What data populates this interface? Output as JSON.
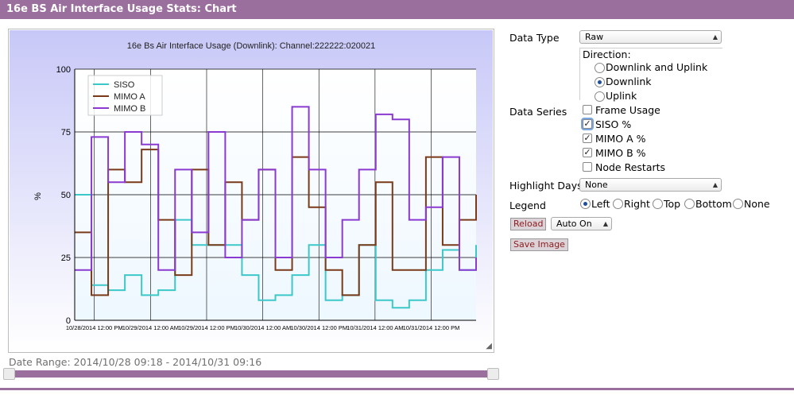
{
  "window": {
    "title": "16e BS Air Interface Usage Stats: Chart"
  },
  "colors": {
    "siso": "#3cc8c8",
    "mimo_a": "#7a3a1a",
    "mimo_b": "#8a3ad0",
    "accent": "#9a6f9e"
  },
  "chart_data": {
    "type": "line",
    "title": "16e Bs Air Interface Usage (Downlink): Channel:222222:020021",
    "ylabel": "%",
    "xlabel": "",
    "ylim": [
      0,
      100
    ],
    "yticks": [
      "0",
      "25",
      "50",
      "75",
      "100"
    ],
    "xticks": [
      "10/28/2014 12:00 PM",
      "10/29/2014 12:00 AM",
      "10/29/2014 12:00 PM",
      "10/30/2014 12:00 AM",
      "10/30/2014 12:00 PM",
      "10/31/2014 12:00 AM",
      "10/31/2014 12:00 PM"
    ],
    "grid": true,
    "legend_position": "top-left",
    "x": [
      0,
      3,
      6,
      9,
      12,
      15,
      18,
      21,
      24,
      27,
      30,
      33,
      36,
      39,
      42,
      45,
      48,
      51,
      54,
      57,
      60,
      63,
      66,
      69,
      72
    ],
    "series": [
      {
        "name": "SISO",
        "color": "#3cc8c8",
        "values": [
          50,
          14,
          12,
          18,
          10,
          12,
          40,
          30,
          30,
          30,
          18,
          8,
          10,
          18,
          30,
          8,
          10,
          30,
          8,
          5,
          8,
          20,
          28,
          20,
          30
        ]
      },
      {
        "name": "MIMO A",
        "color": "#7a3a1a",
        "values": [
          35,
          10,
          60,
          55,
          68,
          40,
          18,
          60,
          30,
          55,
          40,
          60,
          20,
          65,
          45,
          20,
          10,
          30,
          55,
          20,
          20,
          65,
          30,
          40,
          50
        ]
      },
      {
        "name": "MIMO B",
        "color": "#8a3ad0",
        "values": [
          20,
          73,
          55,
          75,
          70,
          20,
          60,
          35,
          75,
          25,
          40,
          60,
          25,
          85,
          60,
          25,
          40,
          60,
          82,
          80,
          40,
          45,
          65,
          20,
          25
        ]
      }
    ]
  },
  "date_range": "Date Range: 2014/10/28 09:18 - 2014/10/31 09:16",
  "panel": {
    "data_type_label": "Data Type",
    "data_type_value": "Raw",
    "direction_label": "Direction:",
    "direction_options": [
      "Downlink and Uplink",
      "Downlink",
      "Uplink"
    ],
    "data_series_label": "Data Series",
    "series_options": [
      "Frame Usage",
      "SISO %",
      "MIMO A %",
      "MIMO B %",
      "Node Restarts"
    ],
    "highlight_label": "Highlight Days",
    "highlight_value": "None",
    "legend_label": "Legend",
    "legend_options": [
      "Left",
      "Right",
      "Top",
      "Bottom",
      "None"
    ],
    "reload_label": "Reload",
    "auto_value": "Auto On",
    "save_label": "Save Image"
  }
}
